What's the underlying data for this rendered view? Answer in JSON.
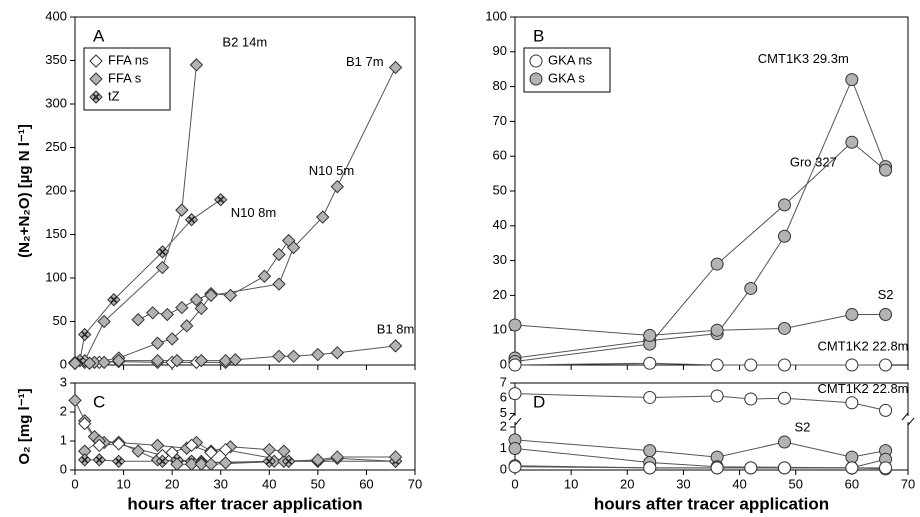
{
  "chart_data": [
    {
      "type": "line",
      "panel_label": "A",
      "ylabel": "(N₂+N₂O) [µg N l⁻¹]",
      "xlim": [
        0,
        70
      ],
      "xticks": [
        0,
        10,
        20,
        30,
        40,
        50,
        60,
        70
      ],
      "ylim": [
        0,
        400
      ],
      "yticks": [
        0,
        50,
        100,
        150,
        200,
        250,
        300,
        350,
        400
      ],
      "legend": [
        {
          "name": "FFA ns",
          "marker": "diamond",
          "fill": "#ffffff"
        },
        {
          "name": "FFA s",
          "marker": "diamond",
          "fill": "#b3b3b3"
        },
        {
          "name": "tZ",
          "marker": "diamond-x",
          "fill": "#b3b3b3"
        }
      ],
      "series": [
        {
          "marker": "diamond",
          "fill": "#ffffff",
          "x": [
            0,
            2,
            5,
            9,
            17,
            20,
            25,
            31
          ],
          "values": [
            2,
            3,
            3,
            4,
            3,
            3,
            3,
            3
          ]
        },
        {
          "label": "B2 14m",
          "marker": "diamond",
          "fill": "#b3b3b3",
          "x": [
            0,
            2,
            6,
            18,
            22,
            25
          ],
          "values": [
            3,
            5,
            50,
            112,
            178,
            345
          ]
        },
        {
          "label": "N10 8m",
          "marker": "diamond-x",
          "fill": "#b3b3b3",
          "x": [
            1,
            2,
            8,
            18,
            24,
            30
          ],
          "values": [
            5,
            35,
            75,
            130,
            167,
            190
          ]
        },
        {
          "label": "N10 5m",
          "marker": "diamond",
          "fill": "#b3b3b3",
          "x": [
            13,
            16,
            19,
            22,
            25,
            28,
            32,
            39,
            42,
            44
          ],
          "values": [
            52,
            60,
            58,
            66,
            75,
            82,
            80,
            102,
            127,
            143
          ]
        },
        {
          "label": "B1 7m",
          "marker": "diamond",
          "fill": "#b3b3b3",
          "x": [
            0,
            4,
            9,
            17,
            20,
            23,
            26,
            28,
            42,
            45,
            51,
            54,
            66
          ],
          "values": [
            2,
            3,
            8,
            25,
            30,
            45,
            65,
            80,
            93,
            135,
            170,
            205,
            342
          ]
        },
        {
          "label": "B1 8m",
          "marker": "diamond",
          "fill": "#b3b3b3",
          "x": [
            0,
            3,
            6,
            9,
            17,
            21,
            26,
            31,
            33,
            42,
            45,
            50,
            54,
            66
          ],
          "values": [
            2,
            2,
            3,
            5,
            5,
            5,
            5,
            5,
            6,
            10,
            10,
            12,
            14,
            22
          ]
        }
      ]
    },
    {
      "type": "line",
      "panel_label": "B",
      "xlim": [
        0,
        70
      ],
      "xticks": [
        0,
        10,
        20,
        30,
        40,
        50,
        60,
        70
      ],
      "ylim": [
        0,
        100
      ],
      "yticks": [
        0,
        10,
        20,
        30,
        40,
        50,
        60,
        70,
        80,
        90,
        100
      ],
      "legend": [
        {
          "name": "GKA ns",
          "marker": "circle",
          "fill": "#ffffff"
        },
        {
          "name": "GKA s",
          "marker": "circle",
          "fill": "#b3b3b3"
        }
      ],
      "series": [
        {
          "label": "CMT1K3 29.3m",
          "marker": "circle",
          "fill": "#b3b3b3",
          "x": [
            0,
            24,
            36,
            42,
            48,
            60,
            66
          ],
          "values": [
            2,
            7,
            9,
            22,
            37,
            82,
            57
          ]
        },
        {
          "label": "Gro 327",
          "marker": "circle",
          "fill": "#b3b3b3",
          "x": [
            0,
            24,
            36,
            48,
            60,
            66
          ],
          "values": [
            1,
            6,
            29,
            46,
            64,
            56
          ]
        },
        {
          "label": "S2",
          "marker": "circle",
          "fill": "#b3b3b3",
          "x": [
            0,
            24,
            36,
            48,
            60,
            66
          ],
          "values": [
            11.5,
            8.5,
            10,
            10.5,
            14.5,
            14.5
          ]
        },
        {
          "label": "CMT1K2 22.8m",
          "marker": "circle",
          "fill": "#ffffff",
          "x": [
            0,
            24,
            36,
            42,
            48,
            60,
            66
          ],
          "values": [
            0,
            0.5,
            0,
            0,
            0,
            0,
            0
          ]
        }
      ]
    },
    {
      "type": "line",
      "panel_label": "C",
      "ylabel": "O₂ [mg l⁻¹]",
      "xlabel": "hours after tracer application",
      "xlim": [
        0,
        70
      ],
      "xticks": [
        0,
        10,
        20,
        30,
        40,
        50,
        60,
        70
      ],
      "ylim": [
        0,
        3
      ],
      "yticks": [
        0,
        1,
        2,
        3
      ],
      "series": [
        {
          "marker": "diamond",
          "fill": "#b3b3b3",
          "x": [
            0,
            2,
            4,
            6,
            9,
            13,
            17,
            21,
            24,
            26,
            31,
            41,
            43
          ],
          "values": [
            2.4,
            1.7,
            1.15,
            0.95,
            0.95,
            0.65,
            0.35,
            0.3,
            0.3,
            0.3,
            0.25,
            0.3,
            0.3
          ]
        },
        {
          "marker": "diamond",
          "fill": "#b3b3b3",
          "x": [
            2,
            5,
            9,
            17,
            23,
            25,
            28,
            32,
            40,
            43
          ],
          "values": [
            0.65,
            1,
            0.95,
            0.85,
            0.75,
            0.95,
            0.65,
            0.8,
            0.7,
            0.65
          ]
        },
        {
          "marker": "diamond",
          "fill": "#ffffff",
          "x": [
            2,
            5,
            9,
            18,
            20,
            24,
            28,
            31,
            44,
            50,
            54,
            66
          ],
          "values": [
            1.6,
            0.85,
            0.9,
            0.5,
            0.6,
            0.85,
            0.6,
            0.7,
            0.3,
            0.3,
            0.4,
            0.3
          ]
        },
        {
          "marker": "diamond-x",
          "fill": "#b3b3b3",
          "x": [
            2,
            5,
            9,
            18,
            21,
            24,
            26,
            40,
            44,
            50,
            66
          ],
          "values": [
            0.35,
            0.35,
            0.3,
            0.3,
            0.35,
            0.3,
            0.25,
            0.3,
            0.3,
            0.3,
            0.3
          ]
        },
        {
          "marker": "diamond",
          "fill": "#b3b3b3",
          "x": [
            21,
            24,
            26,
            28,
            50,
            54,
            66
          ],
          "values": [
            0.2,
            0.2,
            0.2,
            0.2,
            0.35,
            0.45,
            0.45
          ]
        }
      ]
    },
    {
      "type": "line",
      "panel_label": "D",
      "xlabel": "hours after tracer application",
      "xlim": [
        0,
        70
      ],
      "xticks": [
        0,
        10,
        20,
        30,
        40,
        50,
        60,
        70
      ],
      "ylim": [
        0,
        7
      ],
      "ybreak": [
        2.3,
        4.6
      ],
      "yticks": [
        0,
        1,
        2,
        5,
        6,
        7
      ],
      "series": [
        {
          "label": "CMT1K2 22.8m",
          "marker": "circle",
          "fill": "#ffffff",
          "x": [
            0,
            24,
            36,
            42,
            48,
            60,
            66
          ],
          "values": [
            6.3,
            6.05,
            6.15,
            5.95,
            6,
            5.7,
            5.2
          ]
        },
        {
          "label": "S2",
          "marker": "circle",
          "fill": "#b3b3b3",
          "x": [
            0,
            24,
            36,
            48,
            60,
            66
          ],
          "values": [
            1.4,
            0.9,
            0.6,
            1.3,
            0.6,
            0.9
          ]
        },
        {
          "marker": "circle",
          "fill": "#b3b3b3",
          "x": [
            0,
            24,
            36,
            60,
            66
          ],
          "values": [
            1,
            0.35,
            0.15,
            0.1,
            0.5
          ]
        },
        {
          "marker": "circle",
          "fill": "#b3b3b3",
          "x": [
            0,
            24,
            36,
            42,
            48,
            60,
            66
          ],
          "values": [
            0.2,
            0.1,
            0.1,
            0.1,
            0.1,
            0.1,
            0.05
          ]
        },
        {
          "marker": "circle",
          "fill": "#ffffff",
          "x": [
            0,
            24,
            36,
            42,
            48,
            60,
            66
          ],
          "values": [
            0.15,
            0.1,
            0.1,
            0.1,
            0.1,
            0.1,
            0.1
          ]
        }
      ]
    }
  ]
}
